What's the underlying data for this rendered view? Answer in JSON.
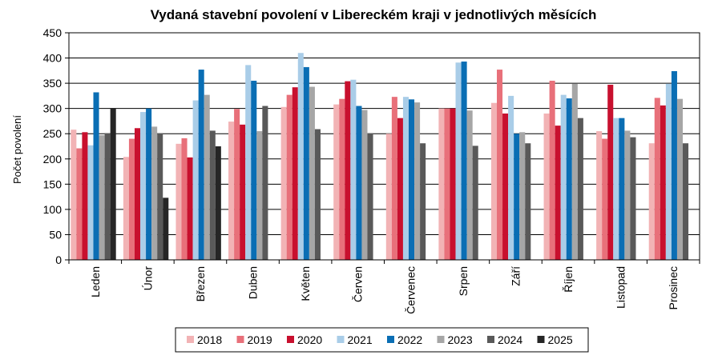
{
  "chart_data": {
    "type": "bar",
    "title": "Vydaná stavební povolení v Libereckém kraji v jednotlivých měsících",
    "xlabel": "",
    "ylabel": "Počet povolení",
    "ylim": [
      0,
      450
    ],
    "yticks": [
      "0",
      "50",
      "100",
      "150",
      "200",
      "250",
      "300",
      "350",
      "400",
      "450"
    ],
    "grid": true,
    "legend_position": "bottom",
    "categories": [
      "Leden",
      "Únor",
      "Březen",
      "Duben",
      "Květen",
      "Červen",
      "Červenec",
      "Srpen",
      "Září",
      "Říjen",
      "Listopad",
      "Prosinec"
    ],
    "series": [
      {
        "name": "2018",
        "color": "#f2b3b5",
        "values": [
          258,
          204,
          230,
          274,
          303,
          308,
          250,
          300,
          311,
          290,
          255,
          231
        ]
      },
      {
        "name": "2019",
        "color": "#e8707a",
        "values": [
          221,
          240,
          241,
          299,
          327,
          319,
          323,
          300,
          377,
          355,
          240,
          321
        ]
      },
      {
        "name": "2020",
        "color": "#c8102e",
        "values": [
          253,
          261,
          203,
          268,
          342,
          354,
          281,
          300,
          290,
          266,
          347,
          306
        ]
      },
      {
        "name": "2021",
        "color": "#a9cde8",
        "values": [
          227,
          293,
          316,
          386,
          410,
          357,
          323,
          391,
          325,
          327,
          281,
          349
        ]
      },
      {
        "name": "2022",
        "color": "#0a6eb4",
        "values": [
          332,
          300,
          377,
          355,
          382,
          305,
          318,
          393,
          250,
          320,
          281,
          374
        ]
      },
      {
        "name": "2023",
        "color": "#a6a6a6",
        "values": [
          247,
          264,
          327,
          255,
          343,
          297,
          312,
          296,
          253,
          349,
          256,
          319
        ]
      },
      {
        "name": "2024",
        "color": "#595959",
        "values": [
          251,
          251,
          256,
          305,
          259,
          251,
          231,
          226,
          231,
          281,
          243,
          231
        ]
      },
      {
        "name": "2025",
        "color": "#262626",
        "values": [
          301,
          123,
          225,
          0,
          0,
          0,
          0,
          0,
          0,
          0,
          0,
          0
        ]
      }
    ]
  }
}
